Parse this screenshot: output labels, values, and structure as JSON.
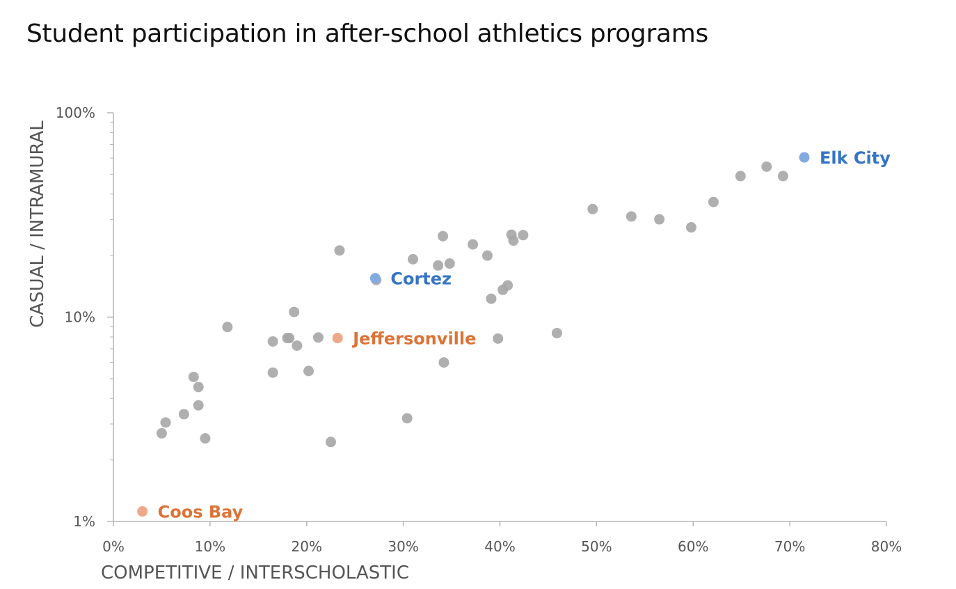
{
  "chart_data": {
    "type": "scatter",
    "title": "Student participation in after-school athletics programs",
    "xlabel": "COMPETITIVE / INTERSCHOLASTIC",
    "ylabel": "CASUAL / INTRAMURAL",
    "x_ticks": [
      "0%",
      "10%",
      "20%",
      "30%",
      "40%",
      "50%",
      "60%",
      "70%",
      "80%"
    ],
    "y_ticks": [
      "1%",
      "10%",
      "100%"
    ],
    "xlim": [
      0,
      80
    ],
    "ylim": [
      1,
      100
    ],
    "y_scale": "log",
    "grid": false,
    "colors": {
      "default_point": "#a6a6a6",
      "blue_point": "#82aae0",
      "blue_label": "#3574c6",
      "orange_point": "#eea98a",
      "orange_label": "#dc7337"
    },
    "points": [
      {
        "x": 5.0,
        "y": 2.7
      },
      {
        "x": 5.4,
        "y": 3.05
      },
      {
        "x": 7.3,
        "y": 3.35
      },
      {
        "x": 8.3,
        "y": 5.1
      },
      {
        "x": 8.8,
        "y": 4.55
      },
      {
        "x": 8.8,
        "y": 3.7
      },
      {
        "x": 9.5,
        "y": 2.55
      },
      {
        "x": 11.8,
        "y": 8.95
      },
      {
        "x": 16.5,
        "y": 7.6
      },
      {
        "x": 16.5,
        "y": 5.35
      },
      {
        "x": 18.0,
        "y": 7.9
      },
      {
        "x": 18.2,
        "y": 7.9
      },
      {
        "x": 18.7,
        "y": 10.6
      },
      {
        "x": 19.0,
        "y": 7.25
      },
      {
        "x": 20.2,
        "y": 5.45
      },
      {
        "x": 21.2,
        "y": 7.95
      },
      {
        "x": 22.5,
        "y": 2.45
      },
      {
        "x": 23.4,
        "y": 21.2
      },
      {
        "x": 27.2,
        "y": 15.2
      },
      {
        "x": 30.4,
        "y": 3.2
      },
      {
        "x": 31.0,
        "y": 19.2
      },
      {
        "x": 33.6,
        "y": 17.9
      },
      {
        "x": 34.1,
        "y": 24.9
      },
      {
        "x": 34.2,
        "y": 6.0
      },
      {
        "x": 34.8,
        "y": 18.3
      },
      {
        "x": 37.2,
        "y": 22.7
      },
      {
        "x": 38.7,
        "y": 20.0
      },
      {
        "x": 39.1,
        "y": 12.3
      },
      {
        "x": 39.8,
        "y": 7.85
      },
      {
        "x": 40.3,
        "y": 13.6
      },
      {
        "x": 40.8,
        "y": 14.3
      },
      {
        "x": 41.2,
        "y": 25.3
      },
      {
        "x": 41.4,
        "y": 23.7
      },
      {
        "x": 42.4,
        "y": 25.2
      },
      {
        "x": 45.9,
        "y": 8.35
      },
      {
        "x": 49.6,
        "y": 33.8
      },
      {
        "x": 53.6,
        "y": 31.1
      },
      {
        "x": 56.5,
        "y": 30.1
      },
      {
        "x": 59.8,
        "y": 27.5
      },
      {
        "x": 62.1,
        "y": 36.6
      },
      {
        "x": 64.9,
        "y": 49.0
      },
      {
        "x": 67.6,
        "y": 54.5
      },
      {
        "x": 69.3,
        "y": 49.0
      },
      {
        "x": 71.5,
        "y": 60.5,
        "label": "Elk City",
        "color": "blue"
      },
      {
        "x": 27.1,
        "y": 15.5,
        "label": "Cortez",
        "color": "blue"
      },
      {
        "x": 23.2,
        "y": 7.9,
        "label": "Jeffersonville",
        "color": "orange"
      },
      {
        "x": 3.0,
        "y": 1.12,
        "label": "Coos Bay",
        "color": "orange"
      }
    ]
  }
}
